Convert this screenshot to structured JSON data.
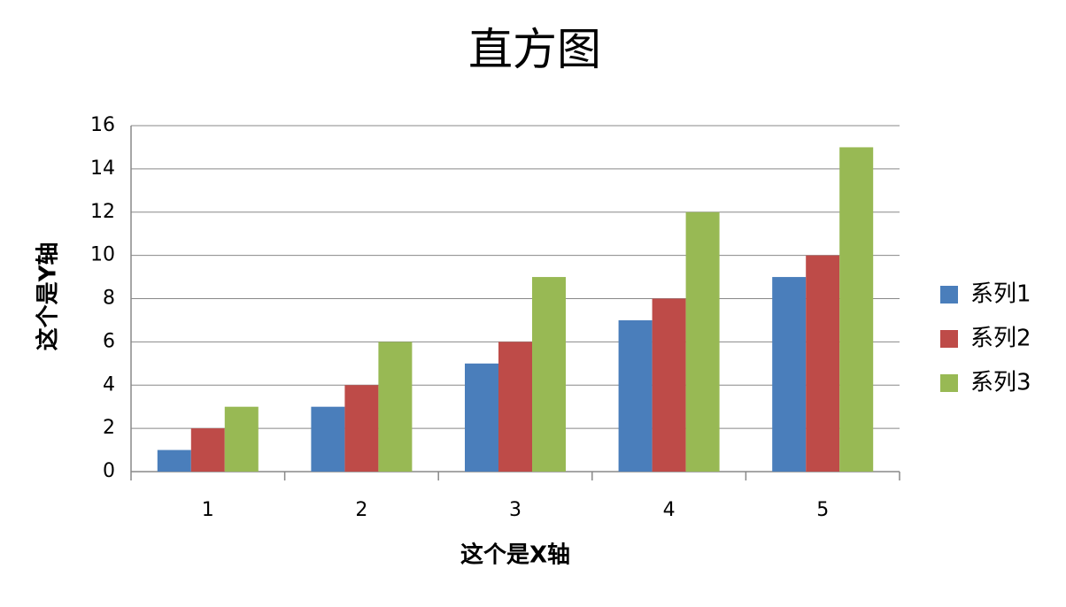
{
  "chart_data": {
    "type": "bar",
    "title": "直方图",
    "x_label": "这个是X轴",
    "y_label": "这个是Y轴",
    "categories": [
      "1",
      "2",
      "3",
      "4",
      "5"
    ],
    "series": [
      {
        "name": "系列1",
        "color": "#4a7ebb",
        "values": [
          1,
          3,
          5,
          7,
          9
        ]
      },
      {
        "name": "系列2",
        "color": "#be4b48",
        "values": [
          2,
          4,
          6,
          8,
          10
        ]
      },
      {
        "name": "系列3",
        "color": "#98b954",
        "values": [
          3,
          6,
          9,
          12,
          15
        ]
      }
    ],
    "ylim": [
      0,
      16
    ],
    "yticks": [
      0,
      2,
      4,
      6,
      8,
      10,
      12,
      14,
      16
    ],
    "grid": true,
    "legend": "right"
  }
}
